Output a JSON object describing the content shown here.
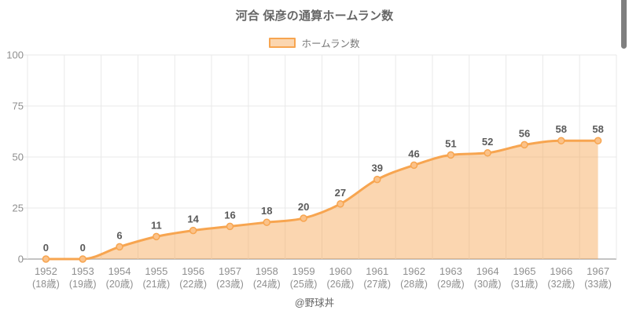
{
  "footer": {
    "credit": "@野球丼"
  },
  "colors": {
    "line": "#f7a550",
    "area_fill": "rgba(247,165,80,0.45)",
    "marker_fill": "#fbc289",
    "grid": "#e9e9e9",
    "axis": "#c4c4c4",
    "tick_label": "#8f8f8f",
    "data_label": "#5a5a5a",
    "title": "#666666",
    "legend_label": "#777777",
    "credit": "#666666",
    "scrollbar": "#7f7f7f"
  },
  "chart_data": {
    "type": "area",
    "title": "河合 保彦の通算ホームラン数",
    "legend_position": "top",
    "grid": true,
    "x": [
      "1952",
      "1953",
      "1954",
      "1955",
      "1956",
      "1957",
      "1958",
      "1959",
      "1960",
      "1961",
      "1962",
      "1963",
      "1964",
      "1965",
      "1966",
      "1967"
    ],
    "x_sub": [
      "(18歳)",
      "(19歳)",
      "(20歳)",
      "(21歳)",
      "(22歳)",
      "(23歳)",
      "(24歳)",
      "(25歳)",
      "(26歳)",
      "(27歳)",
      "(28歳)",
      "(29歳)",
      "(30歳)",
      "(31歳)",
      "(32歳)",
      "(33歳)"
    ],
    "series": [
      {
        "name": "ホームラン数",
        "values": [
          0,
          0,
          6,
          11,
          14,
          16,
          18,
          20,
          27,
          39,
          46,
          51,
          52,
          56,
          58,
          58
        ]
      }
    ],
    "ylim": [
      0,
      100
    ],
    "yticks": [
      0,
      25,
      50,
      75,
      100
    ]
  }
}
